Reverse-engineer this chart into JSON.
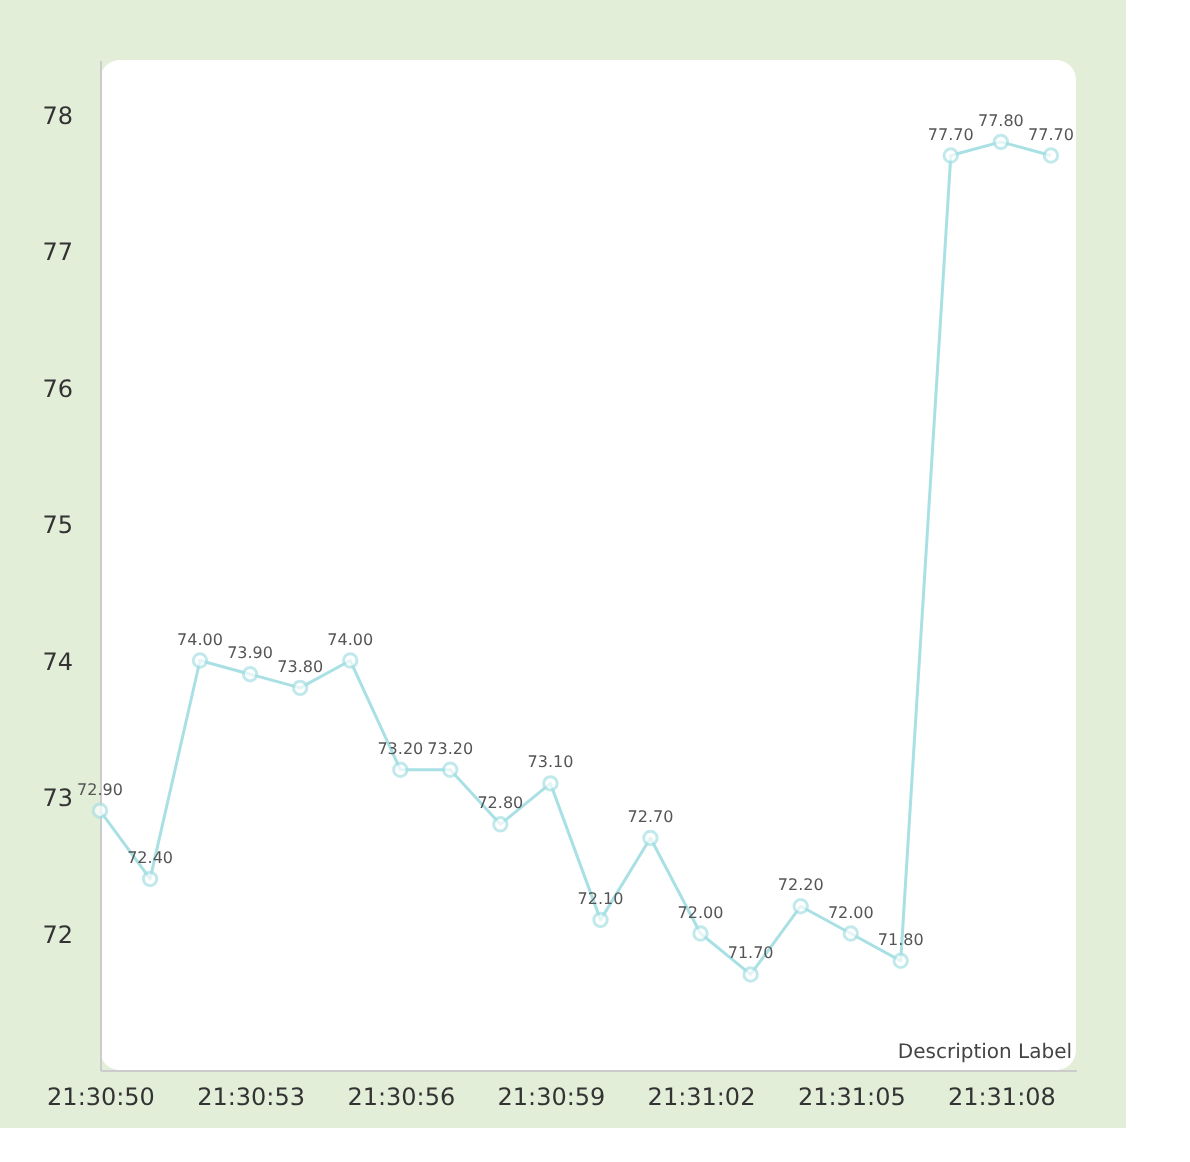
{
  "chart_data": {
    "type": "line",
    "x": [
      21.513889,
      21.514167,
      21.514444,
      21.514722,
      21.515,
      21.515278,
      21.515556,
      21.515833,
      21.516111,
      21.516389,
      21.516667,
      21.516944,
      21.517222,
      21.5175,
      21.517778,
      21.518056,
      21.518333,
      21.518611,
      21.518889,
      21.519167
    ],
    "series": [
      {
        "color": "#a8e0e4",
        "values": [
          72.9,
          72.4,
          74.0,
          73.9,
          73.8,
          74.0,
          73.2,
          73.2,
          72.8,
          73.1,
          72.1,
          72.7,
          72.0,
          71.7,
          72.2,
          72.0,
          71.8,
          77.7,
          77.8,
          77.7
        ],
        "value_labels": [
          "72.90",
          "72.40",
          "74.00",
          "73.90",
          "73.80",
          "74.00",
          "73.20",
          "73.20",
          "72.80",
          "73.10",
          "72.10",
          "72.70",
          "72.00",
          "71.70",
          "72.20",
          "72.00",
          "71.80",
          "77.70",
          "77.80",
          "77.70"
        ]
      }
    ],
    "marker": "circle",
    "line_style": "solid",
    "xlim": [
      21.513889,
      21.519306
    ],
    "xticks": [
      {
        "value": 21.513889,
        "label": "21:30:50"
      },
      {
        "value": 21.514722,
        "label": "21:30:53"
      },
      {
        "value": 21.515556,
        "label": "21:30:56"
      },
      {
        "value": 21.516389,
        "label": "21:30:59"
      },
      {
        "value": 21.517222,
        "label": "21:31:02"
      },
      {
        "value": 21.518056,
        "label": "21:31:05"
      },
      {
        "value": 21.518889,
        "label": "21:31:08"
      }
    ],
    "ylim": [
      71.0,
      78.4
    ],
    "yticks": [
      72,
      73,
      74,
      75,
      76,
      77,
      78
    ],
    "annotations": [
      "Description Label"
    ]
  }
}
